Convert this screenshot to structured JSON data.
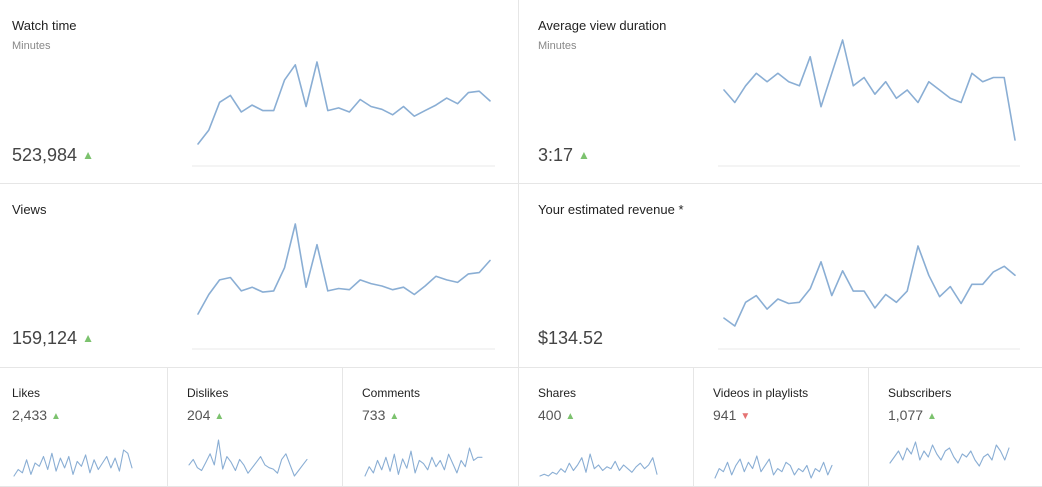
{
  "big_cards": [
    {
      "title": "Watch time",
      "subtitle": "Minutes",
      "value": "523,984",
      "trend": "up",
      "trend_glyph": "▲",
      "series": [
        12,
        22,
        42,
        47,
        35,
        40,
        36,
        36,
        58,
        69,
        39,
        71,
        36,
        38,
        35,
        44,
        39,
        37,
        33,
        39,
        32,
        36,
        40,
        45,
        41,
        49,
        50,
        43
      ]
    },
    {
      "title": "Average view duration",
      "subtitle": "Minutes",
      "value": "3:17",
      "trend": "up",
      "trend_glyph": "▲",
      "series": [
        58,
        55,
        59,
        62,
        60,
        62,
        60,
        59,
        66,
        54,
        62,
        70,
        59,
        61,
        57,
        60,
        56,
        58,
        55,
        60,
        58,
        56,
        55,
        62,
        60,
        61,
        61,
        46
      ]
    },
    {
      "title": "Views",
      "subtitle": "",
      "value": "159,124",
      "trend": "up",
      "trend_glyph": "▲",
      "series": [
        12,
        28,
        40,
        42,
        31,
        34,
        30,
        31,
        50,
        86,
        34,
        69,
        31,
        33,
        32,
        40,
        37,
        35,
        32,
        34,
        28,
        35,
        43,
        40,
        38,
        45,
        46,
        56
      ]
    },
    {
      "title": "Your estimated revenue *",
      "subtitle": "",
      "value": "$134.52",
      "trend": "",
      "trend_glyph": "",
      "series": [
        14,
        7,
        28,
        34,
        22,
        31,
        27,
        28,
        40,
        64,
        34,
        56,
        38,
        38,
        23,
        35,
        28,
        38,
        78,
        52,
        33,
        42,
        27,
        44,
        44,
        55,
        60,
        52
      ]
    }
  ],
  "small_cards": [
    {
      "title": "Likes",
      "value": "2,433",
      "trend": "up",
      "trend_glyph": "▲",
      "series": [
        8,
        12,
        10,
        18,
        9,
        16,
        14,
        20,
        12,
        22,
        11,
        19,
        13,
        20,
        9,
        17,
        14,
        21,
        10,
        18,
        12,
        16,
        20,
        13,
        19,
        11,
        24,
        22,
        13
      ]
    },
    {
      "title": "Dislikes",
      "value": "204",
      "trend": "up",
      "trend_glyph": "▲",
      "series": [
        12,
        16,
        10,
        8,
        14,
        20,
        12,
        30,
        9,
        18,
        14,
        8,
        16,
        12,
        6,
        10,
        14,
        18,
        12,
        10,
        9,
        6,
        16,
        20,
        12,
        4,
        8,
        12,
        16
      ]
    },
    {
      "title": "Comments",
      "value": "733",
      "trend": "up",
      "trend_glyph": "▲",
      "series": [
        8,
        14,
        10,
        18,
        12,
        20,
        11,
        22,
        9,
        19,
        13,
        24,
        10,
        18,
        16,
        12,
        20,
        14,
        18,
        12,
        22,
        16,
        10,
        18,
        14,
        26,
        18,
        20,
        20
      ]
    },
    {
      "title": "Shares",
      "value": "400",
      "trend": "up",
      "trend_glyph": "▲",
      "series": [
        8,
        9,
        8,
        10,
        9,
        12,
        10,
        15,
        11,
        14,
        18,
        10,
        20,
        12,
        14,
        11,
        13,
        12,
        16,
        11,
        14,
        12,
        10,
        13,
        15,
        12,
        14,
        18,
        9
      ]
    },
    {
      "title": "Videos in playlists",
      "value": "941",
      "trend": "down",
      "trend_glyph": "▼",
      "series": [
        6,
        12,
        10,
        16,
        8,
        14,
        18,
        10,
        16,
        12,
        20,
        10,
        14,
        18,
        8,
        12,
        10,
        16,
        14,
        8,
        12,
        10,
        14,
        6,
        12,
        10,
        16,
        8,
        14
      ]
    },
    {
      "title": "Subscribers",
      "value": "1,077",
      "trend": "up",
      "trend_glyph": "▲",
      "series": [
        16,
        20,
        24,
        18,
        26,
        22,
        30,
        18,
        24,
        20,
        28,
        22,
        18,
        24,
        26,
        20,
        16,
        22,
        20,
        24,
        18,
        14,
        20,
        22,
        18,
        28,
        24,
        18,
        26
      ]
    }
  ],
  "colors": {
    "line": "#8aaed4",
    "up": "#7cc26e",
    "down": "#e57373",
    "border": "#e6e6e6"
  }
}
